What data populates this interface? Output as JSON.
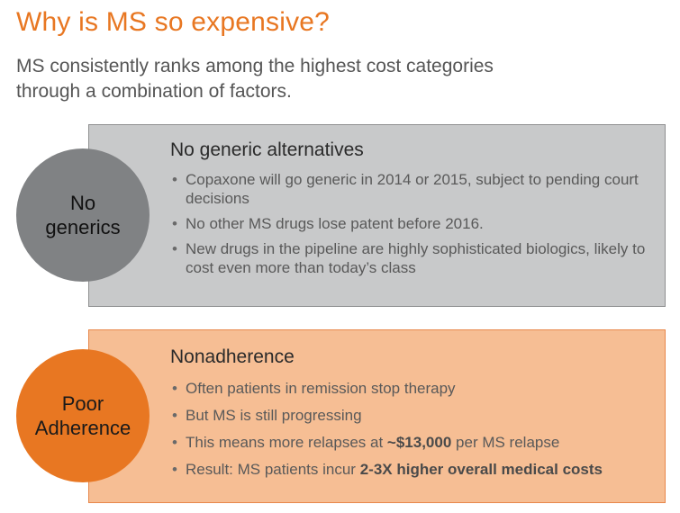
{
  "header": {
    "title": "Why is MS so expensive?",
    "subtitle": "MS consistently ranks among the highest cost categories through a combination of factors."
  },
  "sections": [
    {
      "circle_lines": [
        "No",
        "generics"
      ],
      "heading": "No generic alternatives",
      "bullets": [
        "Copaxone will go generic in 2014 or 2015, subject to pending court decisions",
        "No other MS drugs lose patent before 2016.",
        "New drugs in the pipeline are highly sophisticated biologics, likely to cost even more than today’s class"
      ]
    },
    {
      "circle_lines": [
        "Poor",
        "Adherence"
      ],
      "heading": "Nonadherence",
      "bullets": [
        "Often patients in remission stop therapy",
        "But MS is still progressing",
        {
          "before": "This means more relapses at ",
          "emphasis": "~$13,000",
          "after": " per MS relapse"
        },
        {
          "before": "Result: MS patients incur ",
          "emphasis": "2-3X higher overall medical costs",
          "after": ""
        }
      ]
    }
  ],
  "colors": {
    "accent": "#E87722",
    "gray_panel": "#C8C9CA",
    "gray_circle": "#808284",
    "orange_panel": "#F6BE94"
  }
}
